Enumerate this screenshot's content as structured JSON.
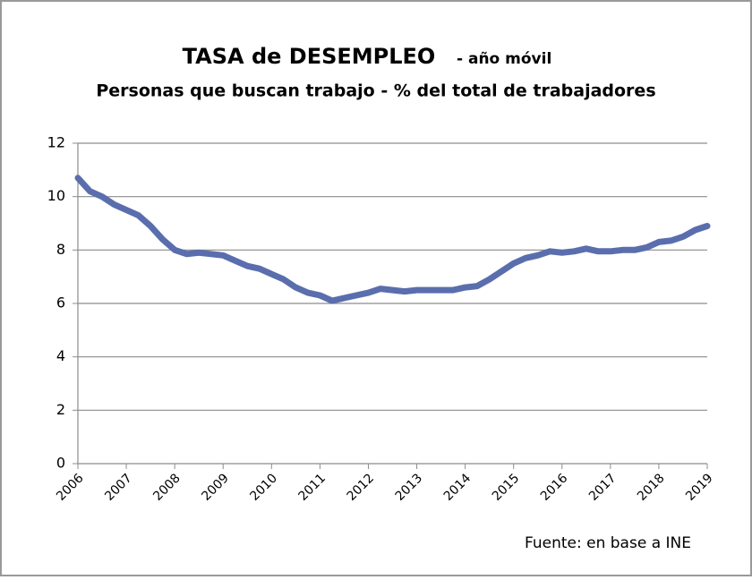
{
  "chart_data": {
    "type": "line",
    "title": "TASA de DESEMPLEO",
    "title_note": "- año móvil",
    "subtitle": "Personas que buscan trabajo - % del total de trabajadores",
    "source": "Fuente: en base a INE",
    "x": [
      2006,
      2006.25,
      2006.5,
      2006.75,
      2007,
      2007.25,
      2007.5,
      2007.75,
      2008,
      2008.25,
      2008.5,
      2008.75,
      2009,
      2009.25,
      2009.5,
      2009.75,
      2010,
      2010.25,
      2010.5,
      2010.75,
      2011,
      2011.25,
      2011.5,
      2011.75,
      2012,
      2012.25,
      2012.5,
      2012.75,
      2013,
      2013.25,
      2013.5,
      2013.75,
      2014,
      2014.25,
      2014.5,
      2014.75,
      2015,
      2015.25,
      2015.5,
      2015.75,
      2016,
      2016.25,
      2016.5,
      2016.75,
      2017,
      2017.25,
      2017.5,
      2017.75,
      2018,
      2018.25,
      2018.5,
      2018.75,
      2019
    ],
    "values": [
      10.7,
      10.2,
      10.0,
      9.7,
      9.5,
      9.3,
      8.9,
      8.4,
      8.0,
      7.85,
      7.9,
      7.85,
      7.8,
      7.6,
      7.4,
      7.3,
      7.1,
      6.9,
      6.6,
      6.4,
      6.3,
      6.1,
      6.2,
      6.3,
      6.4,
      6.55,
      6.5,
      6.45,
      6.5,
      6.5,
      6.5,
      6.5,
      6.6,
      6.65,
      6.9,
      7.2,
      7.5,
      7.7,
      7.8,
      7.95,
      7.9,
      7.95,
      8.05,
      7.95,
      7.95,
      8.0,
      8.0,
      8.1,
      8.3,
      8.35,
      8.5,
      8.75,
      8.9
    ],
    "color": "#5a6eae",
    "xlim": [
      2006,
      2019
    ],
    "xticks": [
      2006,
      2007,
      2008,
      2009,
      2010,
      2011,
      2012,
      2013,
      2014,
      2015,
      2016,
      2017,
      2018,
      2019
    ],
    "ylim": [
      0,
      12
    ],
    "yticks": [
      0,
      2,
      4,
      6,
      8,
      10,
      12
    ],
    "grid": true
  }
}
